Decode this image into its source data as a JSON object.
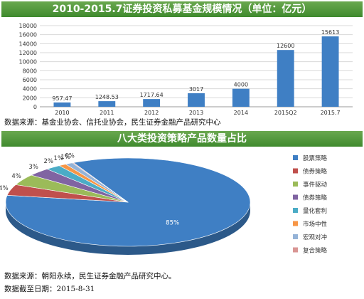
{
  "charts": {
    "bar": {
      "title": "2010-2015.7证券投资私募基金规模情况（单位：亿元）",
      "source": "数据来源：基金业协会、信托业协会，民生证券金融产品研究中心"
    },
    "pie": {
      "title": "八大类投资策略产品数量占比",
      "source": "数据来源：朝阳永续，民生证券金融产品研究中心。",
      "date": "数据截至日期：2015-8-31"
    }
  },
  "chart_data": [
    {
      "type": "bar",
      "title": "2010-2015.7证券投资私募基金规模情况（单位：亿元）",
      "categories": [
        "2010",
        "2011",
        "2012",
        "2013",
        "2014",
        "2015Q2",
        "2015.7"
      ],
      "values": [
        957.47,
        1248.53,
        1717.64,
        3017,
        4000,
        12600,
        15613
      ],
      "value_labels": [
        "957.47",
        "1248.53",
        "1717.64",
        "3017",
        "4000",
        "12600",
        "15613"
      ],
      "ylim": [
        0,
        18000
      ],
      "yticks": [
        0,
        2000,
        4000,
        6000,
        8000,
        10000,
        12000,
        14000,
        16000,
        18000
      ],
      "grid": true,
      "color": "#3f7fc4"
    },
    {
      "type": "pie",
      "title": "八大类投资策略产品数量占比",
      "labels": [
        "股票策略",
        "债券策略",
        "事件驱动",
        "债券策略",
        "量化套利",
        "市场中性",
        "宏观对冲",
        "复合策略"
      ],
      "values": [
        85,
        4,
        4,
        3,
        2,
        1,
        1,
        0
      ],
      "value_labels": [
        "85%",
        "4%",
        "4%",
        "3%",
        "2%",
        "1%",
        "1%",
        "0%"
      ],
      "colors": [
        "#3f7fc4",
        "#c0504d",
        "#9bbb59",
        "#8064a2",
        "#4bacc6",
        "#f79646",
        "#95b3d7",
        "#d99694"
      ],
      "legend_position": "right"
    }
  ]
}
